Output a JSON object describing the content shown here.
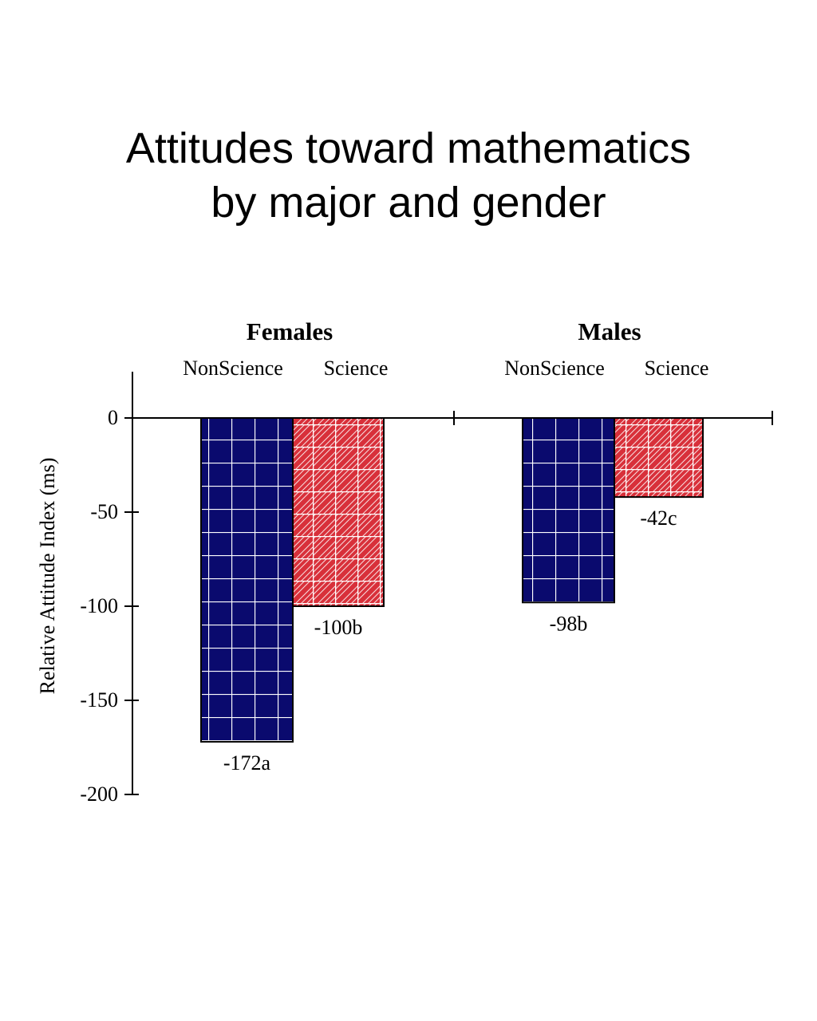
{
  "chart_data": {
    "type": "bar",
    "title_lines": [
      "Attitudes toward mathematics",
      "by major and gender"
    ],
    "ylabel": "Relative Attitude Index (ms)",
    "ylim": [
      -200,
      0
    ],
    "yticks": [
      0,
      -50,
      -100,
      -150,
      -200
    ],
    "grid": false,
    "groups": [
      {
        "name": "Females",
        "categories": [
          "NonScience",
          "Science"
        ],
        "values": [
          -172,
          -100
        ],
        "labels": [
          "-172a",
          "-100b"
        ]
      },
      {
        "name": "Males",
        "categories": [
          "NonScience",
          "Science"
        ],
        "values": [
          -98,
          -42
        ],
        "labels": [
          "-98b",
          "-42c"
        ]
      }
    ],
    "series_colors": {
      "NonScience": "#0a0a6e",
      "Science": "#d8303a"
    }
  }
}
